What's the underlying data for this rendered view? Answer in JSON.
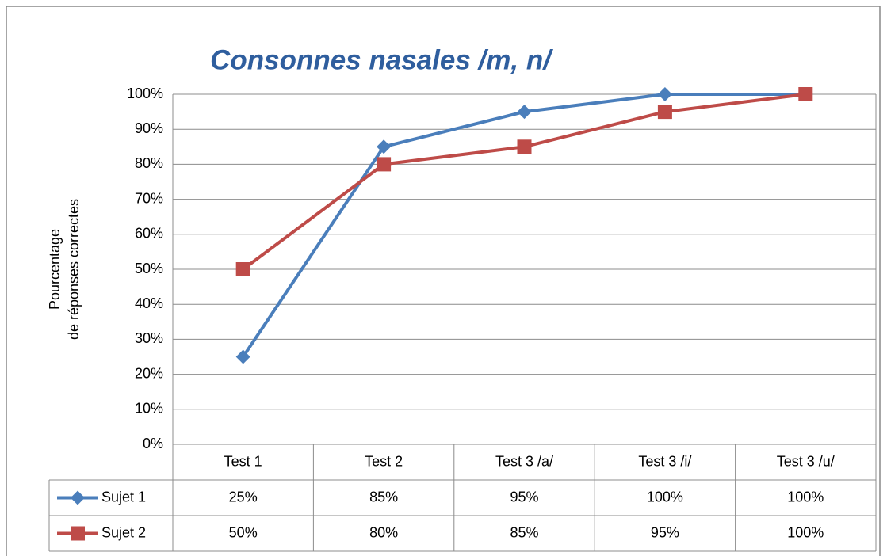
{
  "chart_data": {
    "type": "line",
    "title": "Consonnes nasales /m, n/",
    "y_label": [
      "Pourcentage",
      "de réponses correctes"
    ],
    "categories": [
      "Test 1",
      "Test 2",
      "Test 3 /a/",
      "Test 3 /i/",
      "Test 3 /u/"
    ],
    "series": [
      {
        "name": "Sujet 1",
        "color": "#4a7ebb",
        "marker": "diamond",
        "values": [
          25,
          85,
          95,
          100,
          100
        ],
        "value_labels": [
          "25%",
          "85%",
          "95%",
          "100%",
          "100%"
        ]
      },
      {
        "name": "Sujet 2",
        "color": "#be4b48",
        "marker": "square",
        "values": [
          50,
          80,
          85,
          95,
          100
        ],
        "value_labels": [
          "50%",
          "80%",
          "85%",
          "95%",
          "100%"
        ]
      }
    ],
    "ylim": [
      0,
      100
    ],
    "yticks": [
      {
        "value": 0,
        "label": "0%"
      },
      {
        "value": 10,
        "label": "10%"
      },
      {
        "value": 20,
        "label": "20%"
      },
      {
        "value": 30,
        "label": "30%"
      },
      {
        "value": 40,
        "label": "40%"
      },
      {
        "value": 50,
        "label": "50%"
      },
      {
        "value": 60,
        "label": "60%"
      },
      {
        "value": 70,
        "label": "70%"
      },
      {
        "value": 80,
        "label": "80%"
      },
      {
        "value": 90,
        "label": "90%"
      },
      {
        "value": 100,
        "label": "100%"
      }
    ],
    "grid": true
  }
}
